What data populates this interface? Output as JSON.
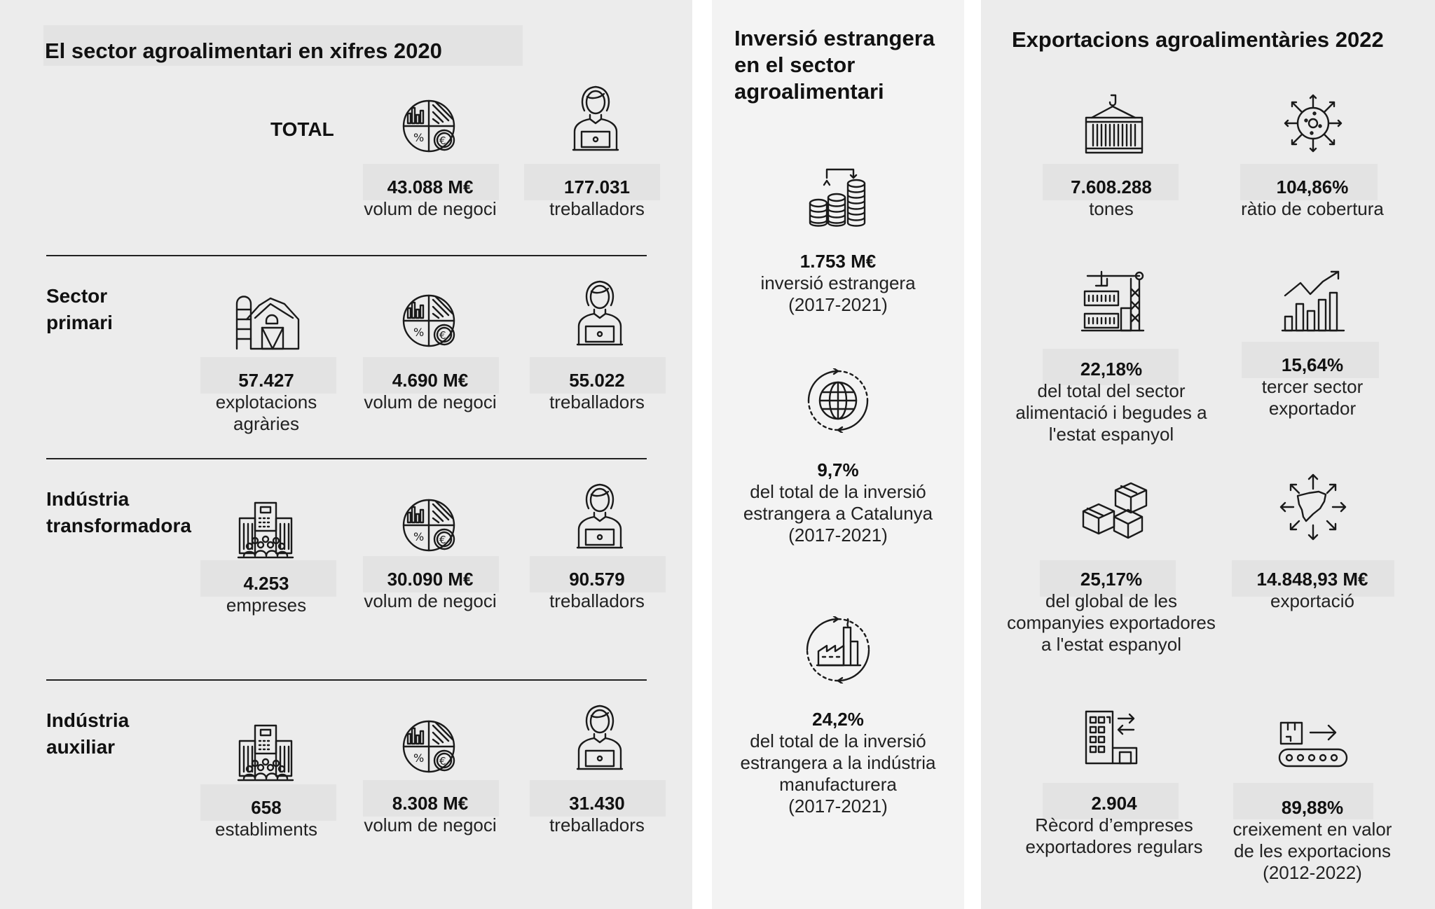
{
  "left": {
    "title": "El sector agroalimentari en xifres 2020",
    "total": {
      "label": "TOTAL",
      "stats": [
        {
          "value": "43.088 M€",
          "label": "volum de negoci",
          "icon": "business-volume-pie-icon"
        },
        {
          "value": "177.031",
          "label": "treballadors",
          "icon": "worker-laptop-icon"
        }
      ]
    },
    "rows": [
      {
        "label_lines": [
          "Sector",
          "primari"
        ],
        "stats": [
          {
            "value": "57.427",
            "label_lines": [
              "explotacions",
              "agràries"
            ],
            "icon": "barn-silo-icon"
          },
          {
            "value": "4.690 M€",
            "label_lines": [
              "volum de negoci"
            ],
            "icon": "business-volume-pie-icon"
          },
          {
            "value": "55.022",
            "label_lines": [
              "treballadors"
            ],
            "icon": "worker-laptop-icon"
          }
        ]
      },
      {
        "label_lines": [
          "Indústria",
          "transformadora"
        ],
        "stats": [
          {
            "value": "4.253",
            "label_lines": [
              "empreses"
            ],
            "icon": "company-building-icon"
          },
          {
            "value": "30.090 M€",
            "label_lines": [
              "volum de negoci"
            ],
            "icon": "business-volume-pie-icon"
          },
          {
            "value": "90.579",
            "label_lines": [
              "treballadors"
            ],
            "icon": "worker-laptop-icon"
          }
        ]
      },
      {
        "label_lines": [
          "Indústria",
          "auxiliar"
        ],
        "stats": [
          {
            "value": "658",
            "label_lines": [
              "establiments"
            ],
            "icon": "company-building-icon"
          },
          {
            "value": "8.308 M€",
            "label_lines": [
              "volum de negoci"
            ],
            "icon": "business-volume-pie-icon"
          },
          {
            "value": "31.430",
            "label_lines": [
              "treballadors"
            ],
            "icon": "worker-laptop-icon"
          }
        ]
      }
    ]
  },
  "middle": {
    "title_lines": [
      "Inversió estrangera",
      "en el sector",
      "agroalimentari"
    ],
    "stats": [
      {
        "value": "1.753 M€",
        "label_lines": [
          "inversió estrangera",
          "(2017-2021)"
        ],
        "icon": "coin-stacks-icon"
      },
      {
        "value": "9,7%",
        "label_lines": [
          "del total de la inversió",
          "estrangera a Catalunya",
          "(2017-2021)"
        ],
        "icon": "globe-cycle-icon"
      },
      {
        "value": "24,2%",
        "label_lines": [
          "del total de la inversió",
          "estrangera a la indústria",
          "manufacturera",
          "(2017-2021)"
        ],
        "icon": "factory-cycle-icon"
      }
    ]
  },
  "right": {
    "title": "Exportacions agroalimentàries 2022",
    "stats": [
      {
        "value": "7.608.288",
        "label_lines": [
          "tones"
        ],
        "icon": "cargo-container-icon"
      },
      {
        "value": "104,86%",
        "label_lines": [
          "ràtio de cobertura"
        ],
        "icon": "virus-arrows-icon"
      },
      {
        "value": "22,18%",
        "label_lines": [
          "del total del sector",
          "alimentació i begudes a",
          "l'estat espanyol"
        ],
        "icon": "port-crane-icon"
      },
      {
        "value": "15,64%",
        "label_lines": [
          "tercer sector",
          "exportador"
        ],
        "icon": "growth-chart-icon"
      },
      {
        "value": "25,17%",
        "label_lines": [
          "del global de les",
          "companyies exportadores",
          "a l'estat espanyol"
        ],
        "icon": "boxes-icon"
      },
      {
        "value": "14.848,93 M€",
        "label_lines": [
          "exportació"
        ],
        "icon": "catalonia-map-arrows-icon"
      },
      {
        "value": "2.904",
        "label_lines": [
          "Rècord d’empreses",
          "exportadores regulars"
        ],
        "icon": "warehouse-exchange-icon"
      },
      {
        "value": "89,88%",
        "label_lines": [
          "creixement en valor",
          "de les exportacions",
          "(2012-2022)"
        ],
        "icon": "conveyor-belt-icon"
      }
    ]
  }
}
